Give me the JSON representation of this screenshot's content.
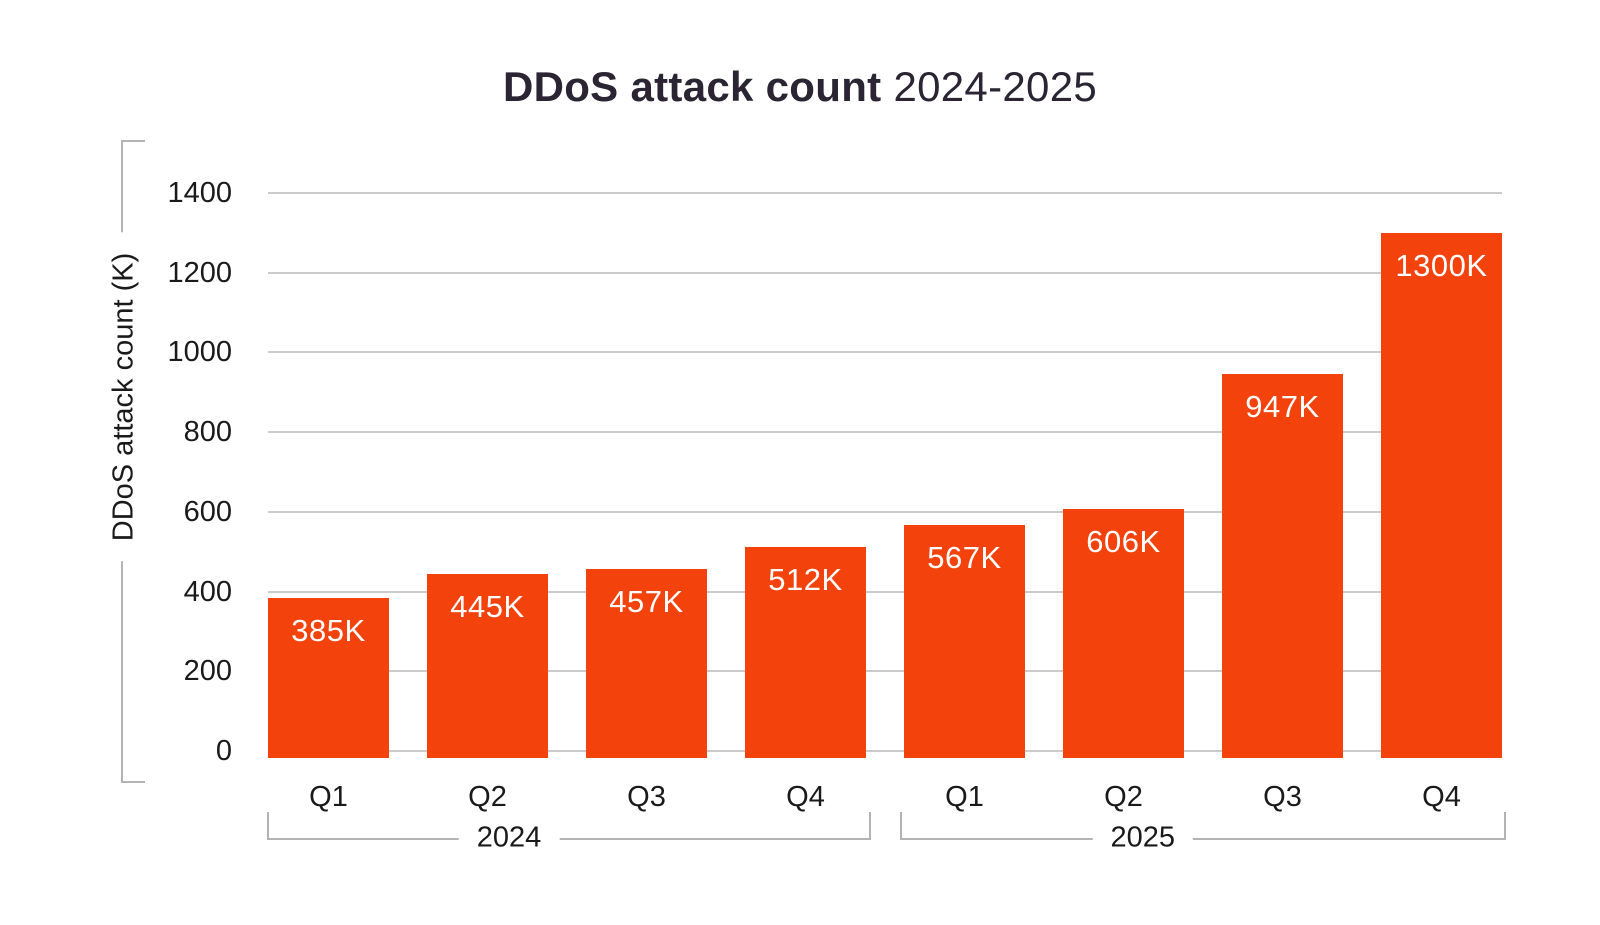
{
  "title": {
    "main": "DDoS attack count",
    "period": "2024-2025"
  },
  "colors": {
    "background": "#ffffff",
    "bar": "#f4420d",
    "bar_label": "#ffffff",
    "title": "#2a2433",
    "text": "#1a1a1a",
    "gridline": "#cbcbcb",
    "bracket": "#b3b3b3"
  },
  "chart_data": {
    "type": "bar",
    "title": "DDoS attack count 2024-2025",
    "xlabel": "",
    "ylabel": "DDoS attack count (K)",
    "ylim": [
      0,
      1400
    ],
    "yticks": [
      0,
      200,
      400,
      600,
      800,
      1000,
      1200,
      1400
    ],
    "grid": true,
    "legend": "none",
    "categories": [
      "Q1",
      "Q2",
      "Q3",
      "Q4",
      "Q1",
      "Q2",
      "Q3",
      "Q4"
    ],
    "values": [
      385,
      445,
      457,
      512,
      567,
      606,
      947,
      1300
    ],
    "bar_labels": [
      "385K",
      "445K",
      "457K",
      "512K",
      "567K",
      "606K",
      "947K",
      "1300K"
    ],
    "groups": [
      {
        "label": "2024",
        "span": [
          0,
          3
        ]
      },
      {
        "label": "2025",
        "span": [
          4,
          7
        ]
      }
    ]
  }
}
